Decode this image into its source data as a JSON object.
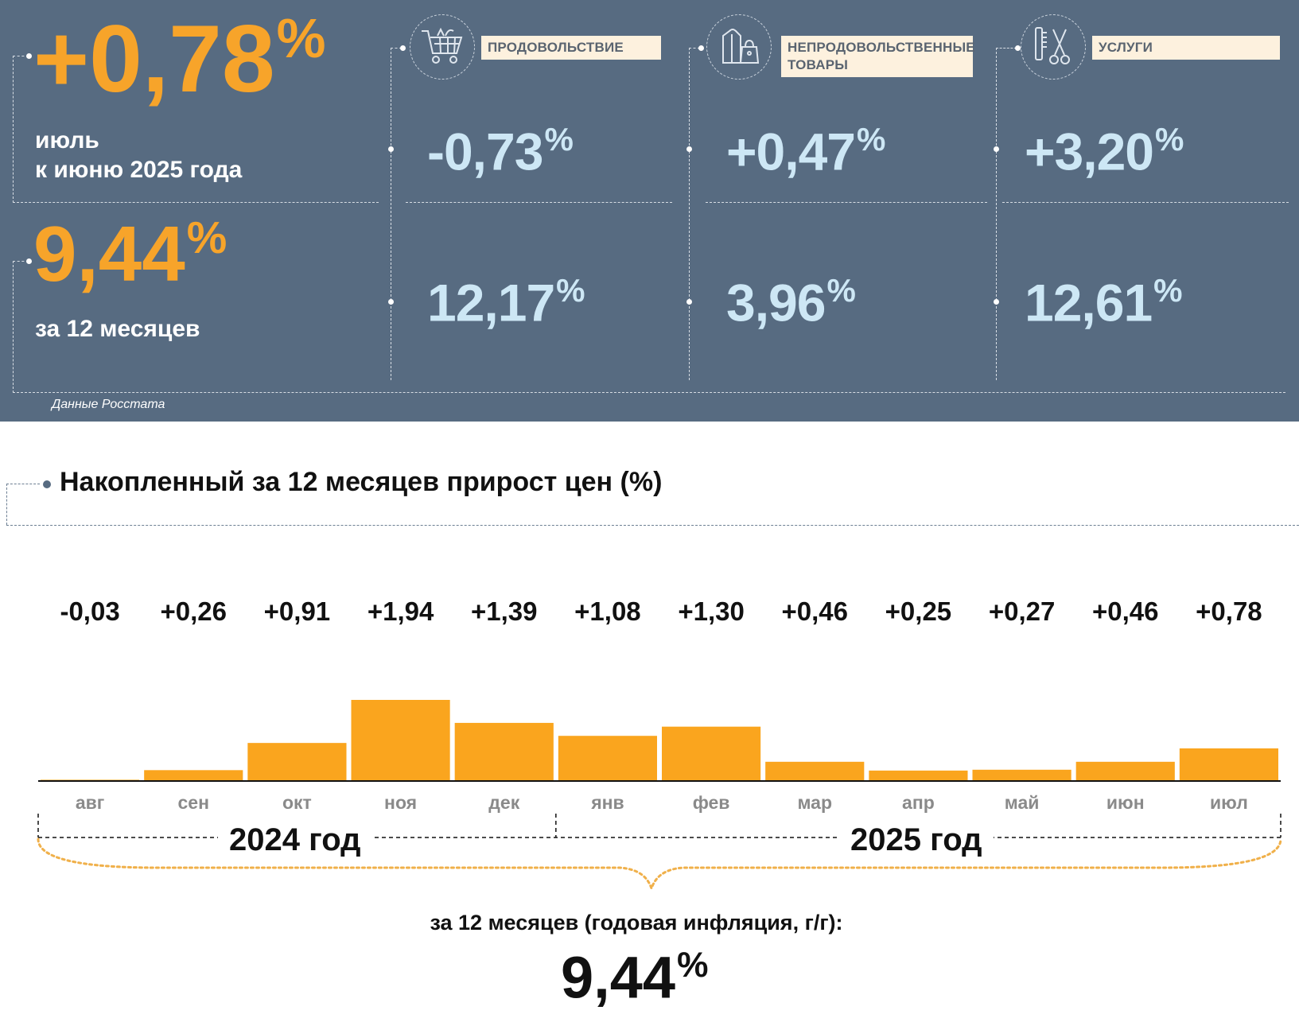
{
  "headline": {
    "monthly_value": "+0,78",
    "monthly_unit": "%",
    "monthly_caption_line1": "июль",
    "monthly_caption_line2": "к июню 2025 года",
    "annual_value": "9,44",
    "annual_unit": "%",
    "annual_caption": "за 12 месяцев"
  },
  "categories": [
    {
      "name_lines": [
        "ПРОДОВОЛЬСТВИЕ"
      ],
      "icon": "shopping-cart-icon",
      "monthly": "-0,73",
      "annual": "12,17",
      "unit": "%"
    },
    {
      "name_lines": [
        "НЕПРОДОВОЛЬСТВЕННЫЕ",
        "ТОВАРЫ"
      ],
      "icon": "clothes-bag-icon",
      "monthly": "+0,47",
      "annual": "3,96",
      "unit": "%"
    },
    {
      "name_lines": [
        "УСЛУГИ"
      ],
      "icon": "scissors-comb-icon",
      "monthly": "+3,20",
      "annual": "12,61",
      "unit": "%"
    }
  ],
  "source_note": "Данные Росстата",
  "section_title": "Накопленный за 12 месяцев прирост цен (%)",
  "chart_data": {
    "type": "bar",
    "title": "Накопленный за 12 месяцев прирост цен (%)",
    "categories": [
      "авг",
      "сен",
      "окт",
      "ноя",
      "дек",
      "янв",
      "фев",
      "мар",
      "апр",
      "май",
      "июн",
      "июл"
    ],
    "values": [
      -0.03,
      0.26,
      0.91,
      1.94,
      1.39,
      1.08,
      1.3,
      0.46,
      0.25,
      0.27,
      0.46,
      0.78
    ],
    "value_labels": [
      "-0,03",
      "+0,26",
      "+0,91",
      "+1,94",
      "+1,39",
      "+1,08",
      "+1,30",
      "+0,46",
      "+0,25",
      "+0,27",
      "+0,46",
      "+0,78"
    ],
    "year_groups": [
      {
        "label": "2024 год",
        "months": 5
      },
      {
        "label": "2025 год",
        "months": 7
      }
    ],
    "ylim": [
      0,
      1.94
    ],
    "grid": false,
    "bar_color": "#faa51e"
  },
  "summary_label": "за 12 месяцев (годовая инфляция, г/г):",
  "summary_value": "9,44",
  "summary_unit": "%",
  "colors": {
    "panel_bg": "#576b81",
    "orange": "#f7a42a",
    "light_blue": "#cde7f5",
    "label_bg": "#fdf1de"
  }
}
